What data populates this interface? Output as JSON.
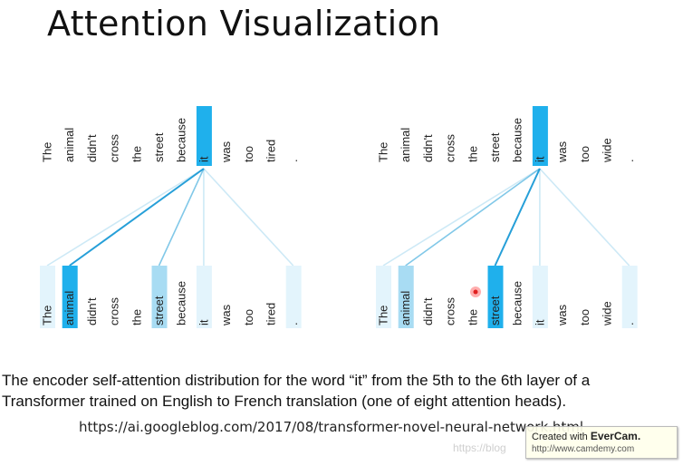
{
  "title": "Attention Visualization",
  "panels": [
    {
      "top_words": [
        "The",
        "animal",
        "didn't",
        "cross",
        "the",
        "street",
        "because",
        "it",
        "was",
        "too",
        "tired",
        "."
      ],
      "bottom_words": [
        "The",
        "animal",
        "didn't",
        "cross",
        "the",
        "street",
        "because",
        "it",
        "was",
        "too",
        "tired",
        "."
      ],
      "query_index": 7,
      "attention": [
        0.15,
        0.95,
        0.0,
        0.0,
        0.0,
        0.4,
        0.0,
        0.12,
        0.0,
        0.0,
        0.0,
        0.18
      ]
    },
    {
      "top_words": [
        "The",
        "animal",
        "didn't",
        "cross",
        "the",
        "street",
        "because",
        "it",
        "was",
        "too",
        "wide",
        "."
      ],
      "bottom_words": [
        "The",
        "animal",
        "didn't",
        "cross",
        "the",
        "street",
        "because",
        "it",
        "was",
        "too",
        "wide",
        "."
      ],
      "query_index": 7,
      "attention": [
        0.15,
        0.35,
        0.0,
        0.0,
        0.0,
        0.95,
        0.0,
        0.12,
        0.0,
        0.0,
        0.0,
        0.18
      ]
    }
  ],
  "caption_line1": "The encoder self-attention distribution for the word “it” from the 5th to the 6th layer of a",
  "caption_line2": "Transformer trained on English to French translation (one of eight attention heads).",
  "source_url": "https://ai.googleblog.com/2017/08/transformer-novel-neural-network.html",
  "watermark_url": "https://blog",
  "evercam": {
    "prefix": "Created with ",
    "brand": "EverCam.",
    "url": "http://www.camdemy.com"
  },
  "colors": {
    "highlight": "#1fb0ec",
    "line": "#1a9ad6",
    "pale": "#e3f4fc"
  }
}
